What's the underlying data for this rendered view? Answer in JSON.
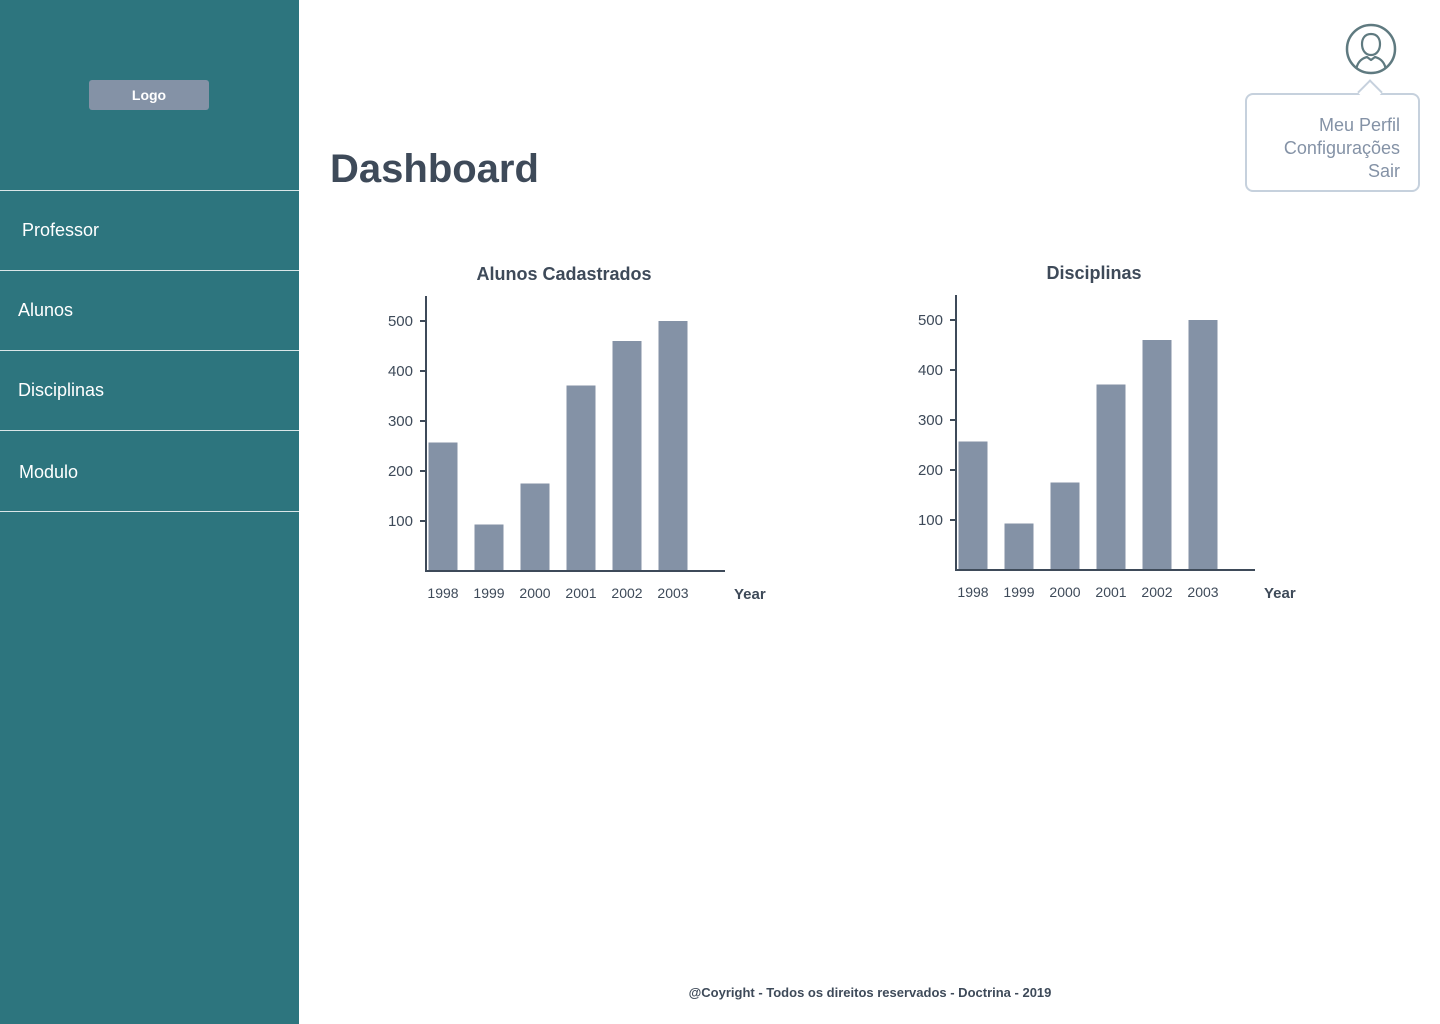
{
  "sidebar": {
    "logo": "Logo",
    "items": [
      {
        "label": "Professor"
      },
      {
        "label": "Alunos"
      },
      {
        "label": "Disciplinas"
      },
      {
        "label": "Modulo"
      }
    ]
  },
  "main": {
    "title": "Dashboard"
  },
  "user_menu": {
    "avatar_icon": "user-avatar-icon",
    "items": [
      "Meu Perfil",
      "Configurações",
      "Sair"
    ]
  },
  "chart_data": [
    {
      "type": "bar",
      "title": "Alunos Cadastrados",
      "xlabel": "Year",
      "ylabel": "",
      "categories": [
        "1998",
        "1999",
        "2000",
        "2001",
        "2002",
        "2003"
      ],
      "values": [
        257,
        93,
        175,
        371,
        460,
        500
      ],
      "yticks": [
        100,
        200,
        300,
        400,
        500
      ],
      "ylim": [
        0,
        550
      ],
      "grid": false,
      "bar_color": "#8492a6"
    },
    {
      "type": "bar",
      "title": "Disciplinas",
      "xlabel": "Year",
      "ylabel": "",
      "categories": [
        "1998",
        "1999",
        "2000",
        "2001",
        "2002",
        "2003"
      ],
      "values": [
        257,
        93,
        175,
        371,
        460,
        500
      ],
      "yticks": [
        100,
        200,
        300,
        400,
        500
      ],
      "ylim": [
        0,
        550
      ],
      "grid": false,
      "bar_color": "#8492a6"
    }
  ],
  "footer": {
    "text": "@Coyright - Todos os direitos reservados - Doctrina - 2019"
  },
  "colors": {
    "sidebar_bg": "#2d757e",
    "accent_gray": "#8492a6",
    "text_dark": "#3e4a59"
  }
}
